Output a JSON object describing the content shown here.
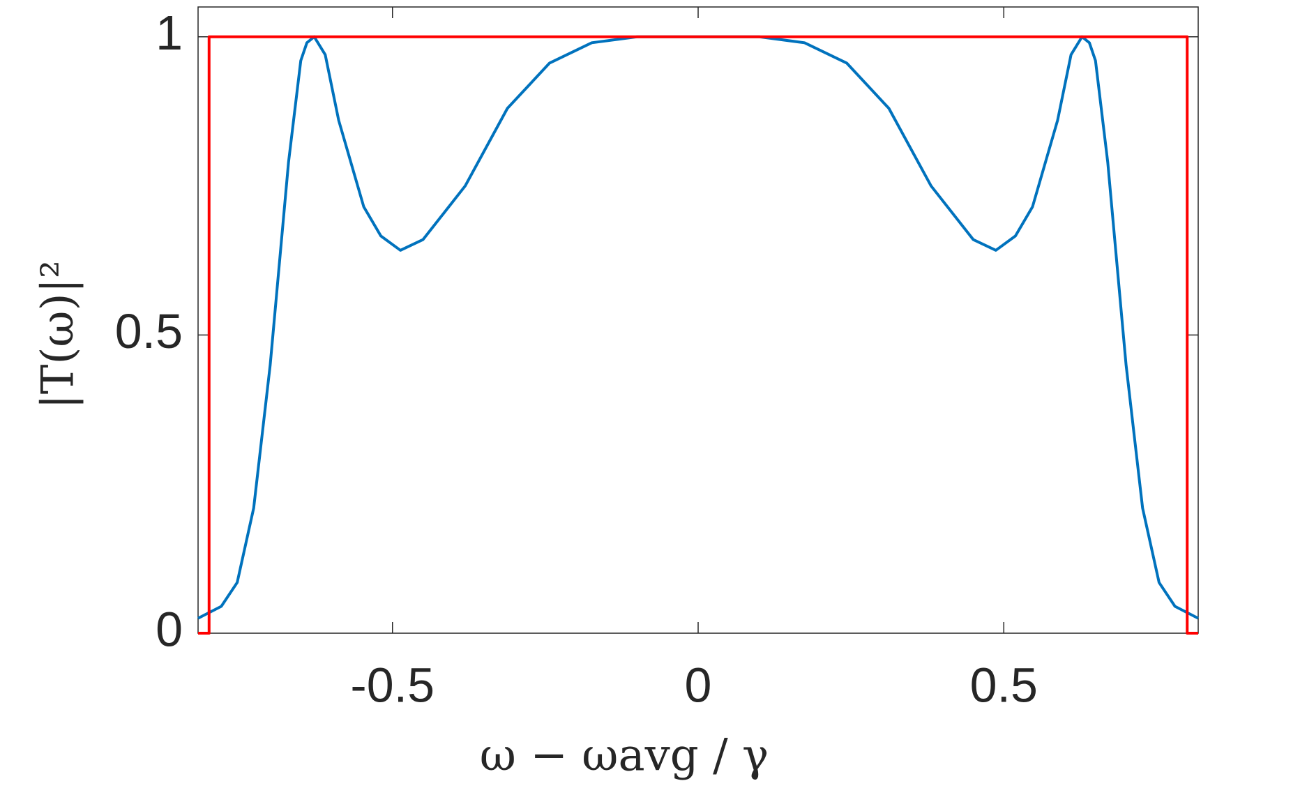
{
  "chart_data": {
    "type": "line",
    "xlabel": "ω − ωavg / γ",
    "ylabel": "|T(ω)|²",
    "xlim": [
      -0.818,
      0.818
    ],
    "ylim": [
      0,
      1.05
    ],
    "xticks": [
      -0.5,
      0,
      0.5
    ],
    "yticks": [
      0,
      0.5,
      1
    ],
    "grid": false,
    "box": true,
    "series": [
      {
        "color": "#0072bd",
        "x": [
          -0.818,
          -0.78,
          -0.754,
          -0.727,
          -0.7,
          -0.67,
          -0.65,
          -0.64,
          -0.628,
          -0.61,
          -0.588,
          -0.547,
          -0.519,
          -0.487,
          -0.45,
          -0.381,
          -0.312,
          -0.243,
          -0.174,
          -0.1,
          0,
          0.1,
          0.174,
          0.243,
          0.312,
          0.381,
          0.45,
          0.487,
          0.519,
          0.547,
          0.588,
          0.61,
          0.628,
          0.64,
          0.65,
          0.67,
          0.7,
          0.727,
          0.754,
          0.78,
          0.818
        ],
        "values": [
          0.025,
          0.045,
          0.085,
          0.21,
          0.45,
          0.79,
          0.96,
          0.99,
          1.0,
          0.97,
          0.86,
          0.715,
          0.666,
          0.642,
          0.66,
          0.75,
          0.88,
          0.956,
          0.99,
          1.0,
          1.0,
          1.0,
          0.99,
          0.956,
          0.88,
          0.75,
          0.66,
          0.642,
          0.666,
          0.715,
          0.86,
          0.97,
          1.0,
          0.99,
          0.96,
          0.79,
          0.45,
          0.21,
          0.085,
          0.045,
          0.025
        ]
      },
      {
        "color": "#ff0000",
        "x": [
          -0.818,
          -0.8,
          -0.8,
          0.8,
          0.8,
          0.818
        ],
        "values": [
          0,
          0,
          1,
          1,
          0,
          0
        ]
      }
    ]
  }
}
